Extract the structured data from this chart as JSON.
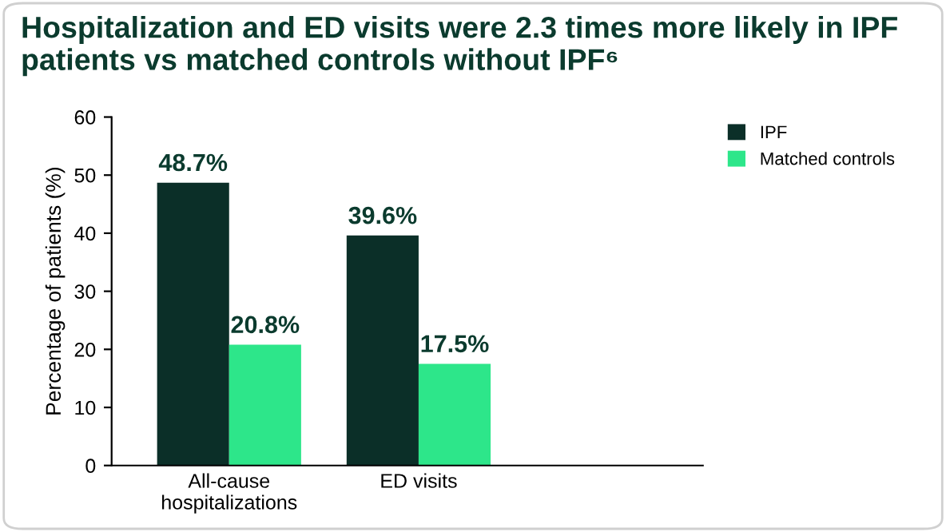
{
  "chart_data": {
    "type": "bar",
    "title": "Hospitalization and ED visits were 2.3 times more likely in IPF patients vs matched controls without IPF⁶",
    "ylabel": "Percentage of patients (%)",
    "categories": [
      "All-cause\nhospitalizations",
      "ED visits"
    ],
    "series": [
      {
        "name": "IPF",
        "color": "#0b2f28",
        "values": [
          48.7,
          39.6
        ],
        "value_labels": [
          "48.7%",
          "39.6%"
        ]
      },
      {
        "name": "Matched controls",
        "color": "#2de68a",
        "values": [
          20.8,
          17.5
        ],
        "value_labels": [
          "20.8%",
          "17.5%"
        ]
      }
    ],
    "ylim": [
      0,
      60
    ],
    "yticks": [
      0,
      10,
      20,
      30,
      40,
      50,
      60
    ],
    "grid": false,
    "legend": "top right"
  }
}
